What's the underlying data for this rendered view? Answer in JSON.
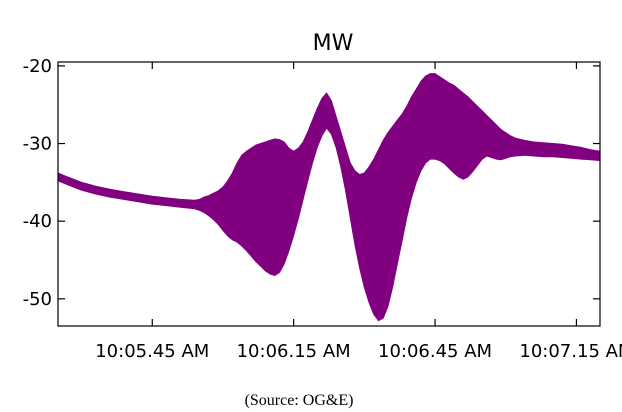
{
  "chart_data": {
    "type": "area",
    "title": "MW",
    "xlabel": "",
    "ylabel": "",
    "x_tick_labels": [
      "10:05.45 AM",
      "10:06.15 AM",
      "10:06.45 AM",
      "10:07.15 AM"
    ],
    "x_tick_seconds": [
      345,
      375,
      405,
      435
    ],
    "xlim_seconds": [
      325,
      440
    ],
    "y_ticks": [
      -20,
      -30,
      -40,
      -50
    ],
    "ylim": [
      -53.5,
      -19.5
    ],
    "grid": false,
    "series": [
      {
        "color": "#800080",
        "x_seconds": [
          325,
          327,
          330,
          333,
          336,
          339,
          342,
          345,
          348,
          351,
          354,
          355,
          356,
          357,
          358,
          359,
          360,
          361,
          362,
          363,
          364,
          365,
          366,
          367,
          368,
          369,
          370,
          371,
          372,
          373,
          374,
          375,
          376,
          377,
          378,
          379,
          380,
          381,
          382,
          383,
          384,
          385,
          386,
          387,
          388,
          389,
          390,
          391,
          392,
          393,
          394,
          395,
          396,
          397,
          398,
          399,
          400,
          401,
          402,
          403,
          404,
          405,
          406,
          407,
          408,
          409,
          410,
          411,
          412,
          413,
          414,
          415,
          416,
          417,
          418,
          419,
          420,
          421,
          422,
          424,
          426,
          428,
          430,
          432,
          434,
          436,
          438,
          440
        ],
        "y_max": [
          -33.8,
          -34.3,
          -35.0,
          -35.5,
          -35.9,
          -36.2,
          -36.5,
          -36.8,
          -37.0,
          -37.2,
          -37.3,
          -37.2,
          -36.9,
          -36.7,
          -36.4,
          -36.1,
          -35.6,
          -34.8,
          -33.8,
          -32.5,
          -31.5,
          -31.0,
          -30.6,
          -30.2,
          -30.0,
          -29.8,
          -29.6,
          -29.4,
          -29.5,
          -29.8,
          -30.6,
          -31.0,
          -30.6,
          -29.8,
          -28.5,
          -27.0,
          -25.5,
          -24.2,
          -23.5,
          -24.5,
          -26.5,
          -28.5,
          -30.5,
          -32.5,
          -33.5,
          -34.0,
          -33.8,
          -33.0,
          -32.0,
          -30.8,
          -29.6,
          -28.6,
          -27.8,
          -27.0,
          -26.2,
          -25.2,
          -24.0,
          -23.0,
          -22.0,
          -21.3,
          -21.0,
          -21.0,
          -21.4,
          -21.8,
          -22.2,
          -22.5,
          -23.0,
          -23.5,
          -24.0,
          -24.6,
          -25.2,
          -25.8,
          -26.4,
          -27.0,
          -27.6,
          -28.2,
          -28.6,
          -29.0,
          -29.3,
          -29.6,
          -29.8,
          -29.9,
          -30.0,
          -30.1,
          -30.3,
          -30.5,
          -30.8,
          -31.0
        ],
        "y_min": [
          -34.8,
          -35.3,
          -36.0,
          -36.5,
          -36.9,
          -37.2,
          -37.5,
          -37.8,
          -38.0,
          -38.2,
          -38.4,
          -38.6,
          -38.9,
          -39.3,
          -39.8,
          -40.4,
          -41.2,
          -41.9,
          -42.4,
          -42.7,
          -43.2,
          -43.8,
          -44.5,
          -45.2,
          -45.8,
          -46.4,
          -46.8,
          -47.0,
          -46.6,
          -45.5,
          -43.8,
          -41.8,
          -39.6,
          -37.2,
          -34.8,
          -32.5,
          -30.5,
          -29.0,
          -28.0,
          -28.8,
          -30.5,
          -33.0,
          -36.0,
          -39.5,
          -43.0,
          -46.0,
          -48.5,
          -50.5,
          -52.0,
          -52.8,
          -52.5,
          -51.0,
          -48.5,
          -45.5,
          -42.5,
          -39.5,
          -37.0,
          -35.0,
          -33.5,
          -32.5,
          -32.0,
          -32.0,
          -32.2,
          -32.6,
          -33.2,
          -33.8,
          -34.3,
          -34.6,
          -34.3,
          -33.6,
          -32.8,
          -32.0,
          -31.6,
          -31.8,
          -32.0,
          -32.1,
          -31.9,
          -31.7,
          -31.6,
          -31.5,
          -31.6,
          -31.7,
          -31.7,
          -31.8,
          -31.9,
          -32.0,
          -32.1,
          -32.2
        ]
      }
    ],
    "source_note": "(Source:  OG&E)"
  }
}
